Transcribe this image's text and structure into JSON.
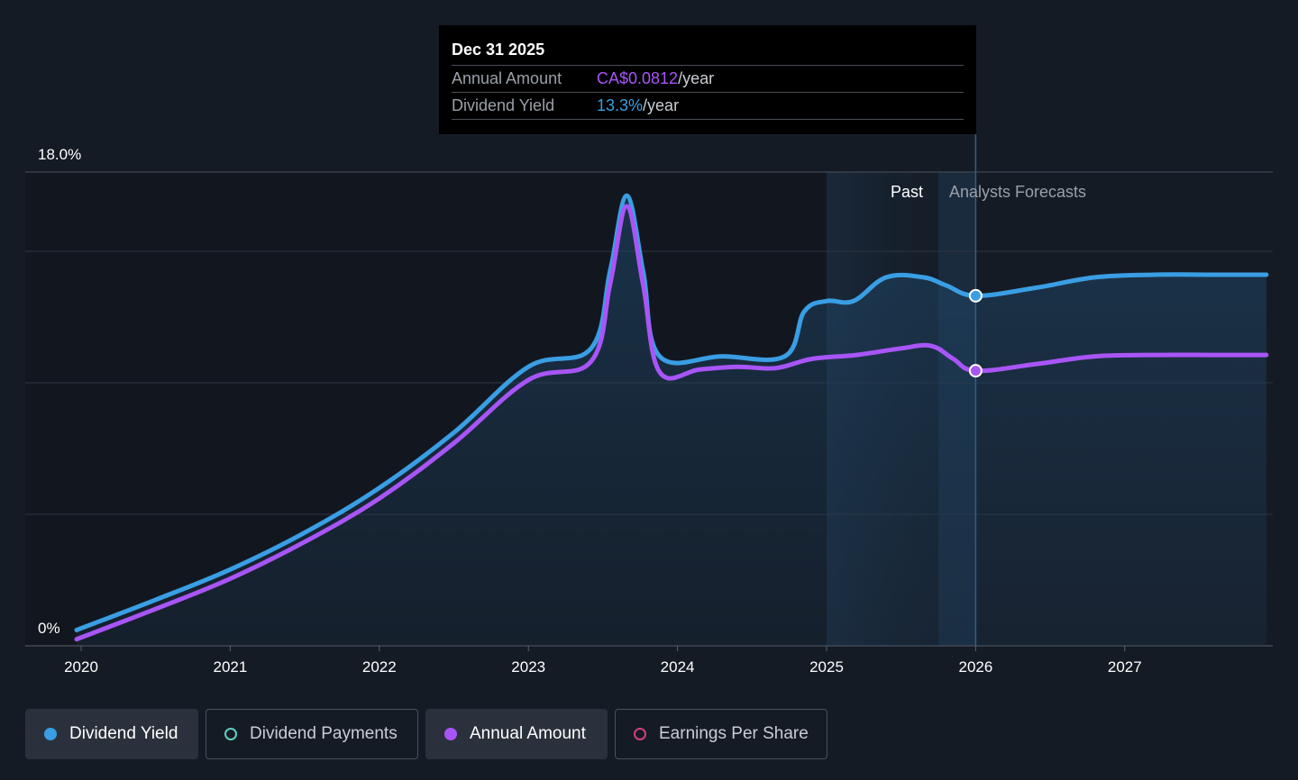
{
  "tooltip": {
    "date": "Dec 31 2025",
    "rows": [
      {
        "label": "Annual Amount",
        "value": "CA$0.0812",
        "unit": "/year"
      },
      {
        "label": "Dividend Yield",
        "value": "13.3%",
        "unit": "/year"
      }
    ]
  },
  "regions": {
    "past": "Past",
    "forecast": "Analysts Forecasts"
  },
  "legend": [
    {
      "label": "Dividend Yield",
      "color": "#3a9ee4",
      "filled": true,
      "active": true
    },
    {
      "label": "Dividend Payments",
      "color": "#5fd0c0",
      "filled": false,
      "active": false
    },
    {
      "label": "Annual Amount",
      "color": "#a855f7",
      "filled": true,
      "active": true
    },
    {
      "label": "Earnings Per Share",
      "color": "#d0407a",
      "filled": false,
      "active": false
    }
  ],
  "colors": {
    "background": "#151b25",
    "yield": "#3a9ee4",
    "annual": "#a855f7"
  },
  "chart_data": {
    "type": "line",
    "y_axis_labels": [
      "18.0%",
      "0%"
    ],
    "ylim": [
      0,
      18
    ],
    "xlim": [
      2019.65,
      2027.95
    ],
    "x_ticks": [
      2020,
      2021,
      2022,
      2023,
      2024,
      2025,
      2026,
      2027
    ],
    "x_tick_labels": [
      "2020",
      "2021",
      "2022",
      "2023",
      "2024",
      "2025",
      "2026",
      "2027"
    ],
    "grid": true,
    "past_region_start": 2025.0,
    "forecast_start": 2025.75,
    "highlight_x": 2026.0,
    "series": [
      {
        "name": "Dividend Yield",
        "color": "#3a9ee4",
        "points": [
          [
            2019.97,
            0.6
          ],
          [
            2020.5,
            1.75
          ],
          [
            2021.0,
            2.9
          ],
          [
            2021.5,
            4.3
          ],
          [
            2022.0,
            6.0
          ],
          [
            2022.5,
            8.1
          ],
          [
            2023.0,
            10.6
          ],
          [
            2023.42,
            11.3
          ],
          [
            2023.55,
            14.3
          ],
          [
            2023.66,
            17.1
          ],
          [
            2023.77,
            14.2
          ],
          [
            2023.88,
            11.0
          ],
          [
            2024.3,
            11.0
          ],
          [
            2024.72,
            11.0
          ],
          [
            2024.85,
            12.7
          ],
          [
            2025.0,
            13.1
          ],
          [
            2025.18,
            13.1
          ],
          [
            2025.4,
            14.0
          ],
          [
            2025.65,
            14.0
          ],
          [
            2025.8,
            13.7
          ],
          [
            2026.0,
            13.3
          ],
          [
            2026.4,
            13.6
          ],
          [
            2026.8,
            14.0
          ],
          [
            2027.2,
            14.1
          ],
          [
            2027.6,
            14.1
          ],
          [
            2027.95,
            14.1
          ]
        ]
      },
      {
        "name": "Annual Amount",
        "color": "#a855f7",
        "points": [
          [
            2019.97,
            0.25
          ],
          [
            2020.5,
            1.4
          ],
          [
            2021.0,
            2.55
          ],
          [
            2021.5,
            3.95
          ],
          [
            2022.0,
            5.6
          ],
          [
            2022.5,
            7.7
          ],
          [
            2023.0,
            10.1
          ],
          [
            2023.42,
            10.8
          ],
          [
            2023.55,
            13.8
          ],
          [
            2023.66,
            16.7
          ],
          [
            2023.77,
            13.7
          ],
          [
            2023.88,
            10.4
          ],
          [
            2024.15,
            10.5
          ],
          [
            2024.4,
            10.6
          ],
          [
            2024.66,
            10.55
          ],
          [
            2024.9,
            10.9
          ],
          [
            2025.2,
            11.05
          ],
          [
            2025.5,
            11.3
          ],
          [
            2025.7,
            11.4
          ],
          [
            2025.85,
            10.9
          ],
          [
            2026.0,
            10.45
          ],
          [
            2026.4,
            10.7
          ],
          [
            2026.8,
            11.0
          ],
          [
            2027.2,
            11.05
          ],
          [
            2027.6,
            11.05
          ],
          [
            2027.95,
            11.05
          ]
        ]
      }
    ]
  }
}
